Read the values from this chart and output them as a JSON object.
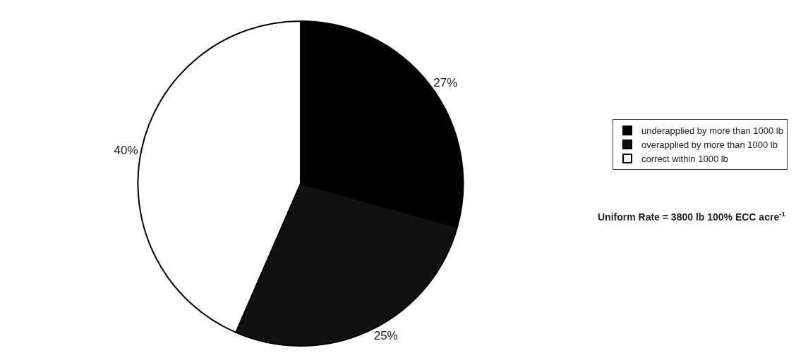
{
  "chart_data": {
    "type": "pie",
    "categories": [
      "underapplied by more than 1000 lb",
      "overapplied by more than 1000 lb",
      "correct within 1000 lb"
    ],
    "values": [
      27,
      25,
      40
    ],
    "colors": [
      "#000000",
      "#111111",
      "#ffffff"
    ],
    "value_labels": [
      "27%",
      "25%",
      "40%"
    ],
    "legend": "right",
    "annotations": [
      "Uniform Rate = 3800 lb 100% ECC acre$^{-1}$"
    ]
  }
}
